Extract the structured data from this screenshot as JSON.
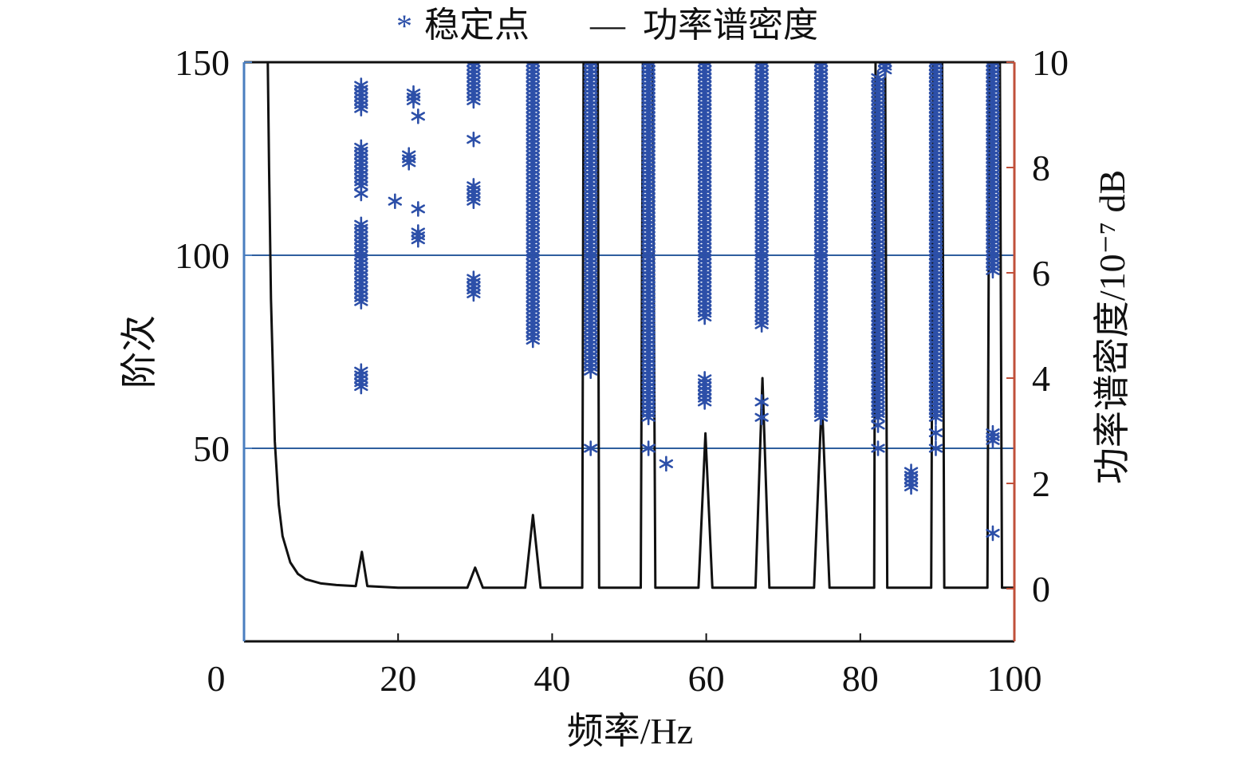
{
  "chart_data": {
    "type": "scatter",
    "title": "",
    "xlabel": "频率/Hz",
    "ylabel": "阶次",
    "y2label": "功率谱密度/10⁻⁷ dB",
    "xlim": [
      0,
      100
    ],
    "ylim": [
      0,
      150
    ],
    "y2lim": [
      -1,
      10
    ],
    "x_ticks": [
      "0",
      "20",
      "40",
      "60",
      "80",
      "100"
    ],
    "y_ticks": [
      "50",
      "100",
      "150"
    ],
    "y2_ticks": [
      "0",
      "2",
      "4",
      "6",
      "8",
      "10"
    ],
    "grid_y": [
      50,
      100
    ],
    "legend": {
      "position": "top",
      "entries": [
        {
          "symbol": "*",
          "label": "稳定点"
        },
        {
          "symbol": "—",
          "label": "功率谱密度"
        }
      ]
    },
    "colors": {
      "stable_points": "#2c4fa8",
      "psd_line": "#111111",
      "left_axis": "#4a7ebf",
      "right_axis": "#c0503a",
      "grid": "#2f5f9e"
    },
    "series": [
      {
        "name": "稳定点",
        "kind": "stable_points",
        "groups": [
          {
            "x": 15.2,
            "orders": [
              [
                88,
                108
              ],
              [
                118,
                128
              ],
              [
                138,
                144
              ],
              [
                66,
                70
              ]
            ],
            "singles": [
              116
            ]
          },
          {
            "x": 19.6,
            "orders": [],
            "singles": [
              114
            ]
          },
          {
            "x": 21.4,
            "orders": [
              [
                124,
                126
              ]
            ],
            "singles": []
          },
          {
            "x": 22.0,
            "orders": [
              [
                140,
                142
              ]
            ],
            "singles": []
          },
          {
            "x": 22.6,
            "orders": [
              [
                104,
                106
              ]
            ],
            "singles": [
              112,
              136
            ]
          },
          {
            "x": 29.8,
            "orders": [
              [
                90,
                94
              ],
              [
                114,
                118
              ],
              [
                140,
                150
              ]
            ],
            "singles": [
              130
            ]
          },
          {
            "x": 37.5,
            "orders": [
              [
                78,
                150
              ]
            ],
            "singles": []
          },
          {
            "x": 45.0,
            "orders": [
              [
                70,
                150
              ]
            ],
            "singles": [
              50
            ]
          },
          {
            "x": 52.5,
            "orders": [
              [
                58,
                150
              ]
            ],
            "singles": [
              50
            ]
          },
          {
            "x": 54.8,
            "orders": [],
            "singles": [
              46
            ]
          },
          {
            "x": 59.8,
            "orders": [
              [
                84,
                150
              ],
              [
                62,
                68
              ]
            ],
            "singles": []
          },
          {
            "x": 67.2,
            "orders": [
              [
                82,
                150
              ]
            ],
            "singles": [
              58,
              62
            ]
          },
          {
            "x": 74.9,
            "orders": [
              [
                58,
                150
              ]
            ],
            "singles": []
          },
          {
            "x": 82.3,
            "orders": [
              [
                58,
                146
              ]
            ],
            "singles": [
              50,
              56
            ]
          },
          {
            "x": 83.2,
            "orders": [
              [
                148,
                150
              ]
            ],
            "singles": []
          },
          {
            "x": 86.6,
            "orders": [
              [
                40,
                44
              ]
            ],
            "singles": []
          },
          {
            "x": 89.8,
            "orders": [
              [
                58,
                150
              ]
            ],
            "singles": [
              50,
              54
            ]
          },
          {
            "x": 97.2,
            "orders": [
              [
                96,
                150
              ],
              [
                52,
                54
              ]
            ],
            "singles": [
              28
            ]
          }
        ]
      },
      {
        "name": "功率谱密度",
        "kind": "psd_line",
        "x": [
          3.0,
          3.25,
          3.5,
          4.0,
          4.5,
          5.0,
          6.0,
          7.0,
          8.0,
          10.0,
          12.0,
          14.5,
          15.3,
          16.0,
          20.0,
          29.0,
          30.0,
          31.0,
          36.5,
          37.5,
          38.5,
          43.9,
          44.1,
          45.9,
          46.1,
          51.5,
          51.8,
          53.0,
          53.4,
          59.0,
          59.9,
          60.8,
          66.4,
          67.3,
          68.2,
          74.0,
          75.0,
          76.0,
          81.8,
          82.0,
          83.2,
          83.5,
          89.2,
          89.5,
          90.6,
          90.9,
          96.5,
          96.8,
          98.1,
          98.4,
          100.0
        ],
        "y": [
          11,
          8,
          5.5,
          2.8,
          1.6,
          1.0,
          0.5,
          0.28,
          0.18,
          0.1,
          0.07,
          0.05,
          0.7,
          0.05,
          0.02,
          0.02,
          0.4,
          0.02,
          0.02,
          1.4,
          0.02,
          0.02,
          11,
          11,
          0.02,
          0.02,
          11,
          11,
          0.02,
          0.02,
          2.95,
          0.02,
          0.02,
          4.0,
          0.02,
          0.02,
          3.6,
          0.02,
          0.02,
          11,
          11,
          0.02,
          0.02,
          11,
          11,
          0.02,
          0.02,
          11,
          11,
          0.02,
          0.02
        ]
      }
    ]
  }
}
